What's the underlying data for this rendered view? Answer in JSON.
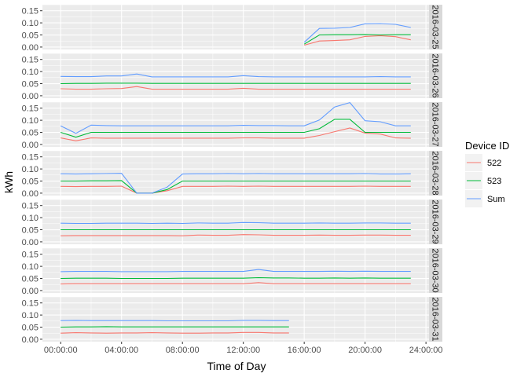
{
  "chart_data": {
    "type": "line",
    "xlabel": "Time of Day",
    "ylabel": "kWh",
    "x_ticks": [
      "00:00:00",
      "04:00:00",
      "08:00:00",
      "12:00:00",
      "16:00:00",
      "20:00:00",
      "24:00:00"
    ],
    "xlim": [
      -1.2,
      24.2
    ],
    "y_ticks": [
      "0.00",
      "0.05",
      "0.10",
      "0.15"
    ],
    "ylim": [
      -0.01,
      0.175
    ],
    "grid": true,
    "legend": {
      "title": "Device ID",
      "position": "right",
      "entries": [
        {
          "label": "522",
          "color": "#F8766D"
        },
        {
          "label": "523",
          "color": "#00BA38"
        },
        {
          "label": "Sum",
          "color": "#619CFF"
        }
      ]
    },
    "panels": [
      {
        "label": "2016-03-25",
        "x": [
          16,
          17,
          18,
          19,
          20,
          21,
          22,
          23
        ],
        "series": [
          {
            "name": "522",
            "values": [
              0.008,
              0.025,
              0.027,
              0.03,
              0.044,
              0.047,
              0.043,
              0.03
            ]
          },
          {
            "name": "523",
            "values": [
              0.012,
              0.05,
              0.051,
              0.051,
              0.052,
              0.05,
              0.051,
              0.051
            ]
          },
          {
            "name": "Sum",
            "values": [
              0.02,
              0.077,
              0.078,
              0.081,
              0.096,
              0.097,
              0.094,
              0.081
            ]
          }
        ]
      },
      {
        "label": "2016-03-26",
        "x": [
          0,
          1,
          2,
          3,
          4,
          5,
          6,
          7,
          8,
          9,
          10,
          11,
          12,
          13,
          14,
          15,
          16,
          17,
          18,
          19,
          20,
          21,
          22,
          23
        ],
        "series": [
          {
            "name": "522",
            "values": [
              0.029,
              0.027,
              0.027,
              0.029,
              0.03,
              0.038,
              0.027,
              0.027,
              0.027,
              0.027,
              0.027,
              0.027,
              0.031,
              0.027,
              0.027,
              0.027,
              0.027,
              0.027,
              0.027,
              0.027,
              0.027,
              0.027,
              0.027,
              0.027
            ]
          },
          {
            "name": "523",
            "values": [
              0.05,
              0.051,
              0.051,
              0.052,
              0.052,
              0.052,
              0.051,
              0.051,
              0.051,
              0.051,
              0.051,
              0.051,
              0.051,
              0.051,
              0.051,
              0.051,
              0.051,
              0.051,
              0.051,
              0.051,
              0.051,
              0.051,
              0.051,
              0.051
            ]
          },
          {
            "name": "Sum",
            "values": [
              0.08,
              0.079,
              0.079,
              0.082,
              0.082,
              0.09,
              0.078,
              0.078,
              0.078,
              0.078,
              0.078,
              0.078,
              0.083,
              0.079,
              0.078,
              0.078,
              0.078,
              0.078,
              0.078,
              0.078,
              0.078,
              0.079,
              0.078,
              0.078
            ]
          }
        ]
      },
      {
        "label": "2016-03-27",
        "x": [
          0,
          1,
          2,
          3,
          4,
          5,
          6,
          7,
          8,
          9,
          10,
          11,
          12,
          13,
          14,
          15,
          16,
          17,
          18,
          19,
          20,
          21,
          22,
          23
        ],
        "series": [
          {
            "name": "522",
            "values": [
              0.027,
              0.015,
              0.027,
              0.026,
              0.026,
              0.026,
              0.026,
              0.026,
              0.026,
              0.026,
              0.026,
              0.026,
              0.027,
              0.027,
              0.026,
              0.026,
              0.026,
              0.037,
              0.053,
              0.068,
              0.047,
              0.043,
              0.027,
              0.026
            ]
          },
          {
            "name": "523",
            "values": [
              0.05,
              0.03,
              0.05,
              0.05,
              0.05,
              0.05,
              0.05,
              0.05,
              0.05,
              0.05,
              0.05,
              0.05,
              0.05,
              0.05,
              0.05,
              0.05,
              0.05,
              0.065,
              0.104,
              0.104,
              0.05,
              0.05,
              0.05,
              0.05
            ]
          },
          {
            "name": "Sum",
            "values": [
              0.077,
              0.046,
              0.08,
              0.078,
              0.077,
              0.077,
              0.077,
              0.077,
              0.077,
              0.077,
              0.077,
              0.077,
              0.079,
              0.078,
              0.078,
              0.077,
              0.077,
              0.101,
              0.155,
              0.173,
              0.098,
              0.094,
              0.077,
              0.077
            ]
          }
        ]
      },
      {
        "label": "2016-03-28",
        "x": [
          0,
          1,
          2,
          3,
          4,
          5,
          6,
          7,
          8,
          9,
          10,
          11,
          12,
          13,
          14,
          15,
          16,
          17,
          18,
          19,
          20,
          21,
          22,
          23
        ],
        "series": [
          {
            "name": "522",
            "values": [
              0.028,
              0.027,
              0.028,
              0.028,
              0.029,
              0.0,
              0.0,
              0.01,
              0.028,
              0.028,
              0.028,
              0.029,
              0.028,
              0.029,
              0.028,
              0.028,
              0.028,
              0.028,
              0.028,
              0.028,
              0.029,
              0.028,
              0.028,
              0.028
            ]
          },
          {
            "name": "523",
            "values": [
              0.05,
              0.05,
              0.051,
              0.051,
              0.052,
              0.0,
              0.0,
              0.015,
              0.05,
              0.05,
              0.05,
              0.05,
              0.05,
              0.05,
              0.05,
              0.05,
              0.05,
              0.05,
              0.05,
              0.05,
              0.05,
              0.05,
              0.05,
              0.05
            ]
          },
          {
            "name": "Sum",
            "values": [
              0.08,
              0.079,
              0.08,
              0.081,
              0.082,
              0.0,
              0.0,
              0.025,
              0.079,
              0.08,
              0.08,
              0.081,
              0.08,
              0.081,
              0.08,
              0.08,
              0.08,
              0.08,
              0.08,
              0.08,
              0.081,
              0.079,
              0.079,
              0.08
            ]
          }
        ]
      },
      {
        "label": "2016-03-29",
        "x": [
          0,
          1,
          2,
          3,
          4,
          5,
          6,
          7,
          8,
          9,
          10,
          11,
          12,
          13,
          14,
          15,
          16,
          17,
          18,
          19,
          20,
          21,
          22,
          23
        ],
        "series": [
          {
            "name": "522",
            "values": [
              0.025,
              0.026,
              0.026,
              0.026,
              0.026,
              0.026,
              0.026,
              0.026,
              0.025,
              0.028,
              0.027,
              0.027,
              0.03,
              0.029,
              0.027,
              0.027,
              0.027,
              0.028,
              0.027,
              0.027,
              0.028,
              0.028,
              0.027,
              0.027
            ]
          },
          {
            "name": "523",
            "values": [
              0.05,
              0.05,
              0.05,
              0.05,
              0.05,
              0.05,
              0.05,
              0.05,
              0.05,
              0.05,
              0.05,
              0.05,
              0.05,
              0.05,
              0.05,
              0.05,
              0.05,
              0.05,
              0.05,
              0.05,
              0.05,
              0.05,
              0.05,
              0.05
            ]
          },
          {
            "name": "Sum",
            "values": [
              0.077,
              0.076,
              0.076,
              0.077,
              0.077,
              0.077,
              0.076,
              0.077,
              0.076,
              0.078,
              0.077,
              0.077,
              0.08,
              0.079,
              0.077,
              0.077,
              0.077,
              0.078,
              0.077,
              0.077,
              0.078,
              0.078,
              0.077,
              0.077
            ]
          }
        ]
      },
      {
        "label": "2016-03-30",
        "x": [
          0,
          1,
          2,
          3,
          4,
          5,
          6,
          7,
          8,
          9,
          10,
          11,
          12,
          13,
          14,
          15,
          16,
          17,
          18,
          19,
          20,
          21,
          22,
          23
        ],
        "series": [
          {
            "name": "522",
            "values": [
              0.027,
              0.028,
              0.028,
              0.028,
              0.028,
              0.028,
              0.028,
              0.028,
              0.028,
              0.028,
              0.028,
              0.028,
              0.028,
              0.033,
              0.028,
              0.028,
              0.028,
              0.028,
              0.028,
              0.028,
              0.028,
              0.028,
              0.028,
              0.028
            ]
          },
          {
            "name": "523",
            "values": [
              0.05,
              0.051,
              0.051,
              0.051,
              0.05,
              0.05,
              0.05,
              0.05,
              0.051,
              0.051,
              0.051,
              0.051,
              0.051,
              0.053,
              0.052,
              0.052,
              0.051,
              0.051,
              0.052,
              0.051,
              0.052,
              0.051,
              0.051,
              0.051
            ]
          },
          {
            "name": "Sum",
            "values": [
              0.078,
              0.079,
              0.079,
              0.079,
              0.078,
              0.078,
              0.078,
              0.078,
              0.079,
              0.079,
              0.079,
              0.079,
              0.079,
              0.087,
              0.079,
              0.079,
              0.079,
              0.079,
              0.08,
              0.079,
              0.08,
              0.079,
              0.079,
              0.079
            ]
          }
        ]
      },
      {
        "label": "2016-03-31",
        "x": [
          0,
          1,
          2,
          3,
          4,
          5,
          6,
          7,
          8,
          9,
          10,
          11,
          12,
          13,
          14,
          15
        ],
        "series": [
          {
            "name": "522",
            "values": [
              0.025,
              0.027,
              0.026,
              0.025,
              0.026,
              0.026,
              0.027,
              0.026,
              0.025,
              0.025,
              0.026,
              0.026,
              0.028,
              0.028,
              0.026,
              0.026
            ]
          },
          {
            "name": "523",
            "values": [
              0.05,
              0.051,
              0.051,
              0.052,
              0.051,
              0.051,
              0.051,
              0.051,
              0.051,
              0.051,
              0.051,
              0.051,
              0.051,
              0.051,
              0.051,
              0.051
            ]
          },
          {
            "name": "Sum",
            "values": [
              0.077,
              0.078,
              0.077,
              0.077,
              0.077,
              0.077,
              0.077,
              0.076,
              0.076,
              0.076,
              0.076,
              0.076,
              0.078,
              0.078,
              0.077,
              0.077
            ]
          }
        ]
      }
    ]
  }
}
